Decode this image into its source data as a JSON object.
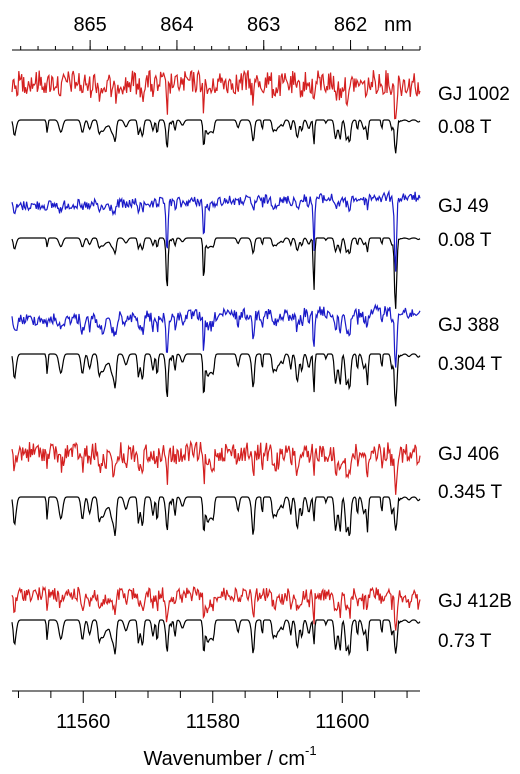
{
  "chart_data": {
    "type": "line",
    "xlabel": "Wavenumber / cm",
    "xlabel_superscript": "-1",
    "x_range": [
      11549,
      11612
    ],
    "x_ticks": [
      11560,
      11580,
      11600
    ],
    "top_axis": {
      "unit": "nm",
      "ticks": [
        865,
        864,
        863,
        862
      ],
      "range_nm": [
        865.9,
        861.2
      ]
    },
    "colors": {
      "red": "#d42020",
      "blue": "#1a1ac8",
      "black": "#000000"
    },
    "series": [
      {
        "star": "GJ 1002",
        "field": "0.08 T",
        "observed_color": "red"
      },
      {
        "star": "GJ 49",
        "field": "0.08 T",
        "observed_color": "blue"
      },
      {
        "star": "GJ 388",
        "field": "0.304 T",
        "observed_color": "blue"
      },
      {
        "star": "GJ 406",
        "field": "0.345 T",
        "observed_color": "red"
      },
      {
        "star": "GJ 412B",
        "field": "0.73 T",
        "observed_color": "red"
      }
    ]
  }
}
